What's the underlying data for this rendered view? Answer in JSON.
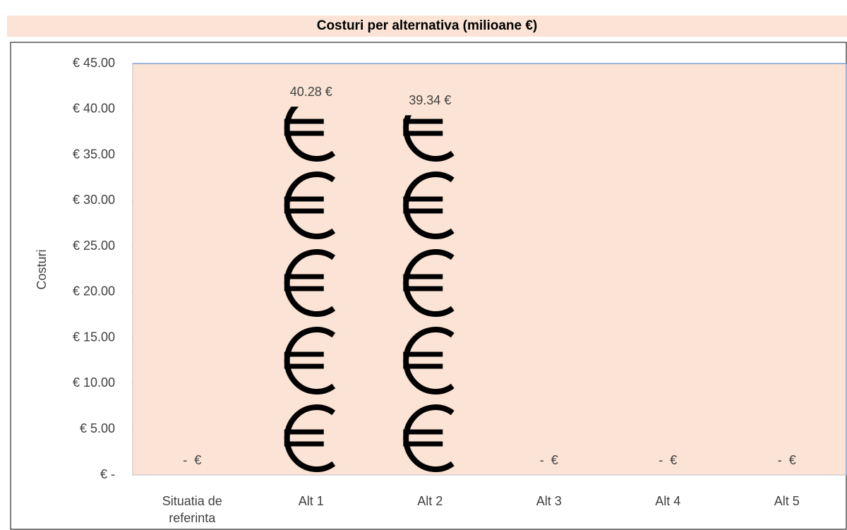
{
  "chart_data": {
    "type": "pictograph",
    "title": "Costuri per alternativa (milioane €)",
    "y_label": "Costuri",
    "categories": [
      "Situatia de referinta",
      "Alt 1",
      "Alt 2",
      "Alt 3",
      "Alt 4",
      "Alt 5"
    ],
    "values": [
      0,
      40.28,
      39.34,
      0,
      0,
      0
    ],
    "value_labels": [
      "-  €",
      "40.28 €",
      "39.34 €",
      "-  €",
      "-  €",
      "-  €"
    ],
    "color": "#000000",
    "ylim": [
      0,
      45
    ],
    "yticks": [
      {
        "value": 0,
        "label": "€ -"
      },
      {
        "value": 5,
        "label": "€ 5.00"
      },
      {
        "value": 10,
        "label": "€ 10.00"
      },
      {
        "value": 15,
        "label": "€ 15.00"
      },
      {
        "value": 20,
        "label": "€ 20.00"
      },
      {
        "value": 25,
        "label": "€ 25.00"
      },
      {
        "value": 30,
        "label": "€ 30.00"
      },
      {
        "value": 35,
        "label": "€ 35.00"
      },
      {
        "value": 40,
        "label": "€ 40.00"
      },
      {
        "value": 45,
        "label": "€ 45.00"
      }
    ],
    "grid": false
  }
}
